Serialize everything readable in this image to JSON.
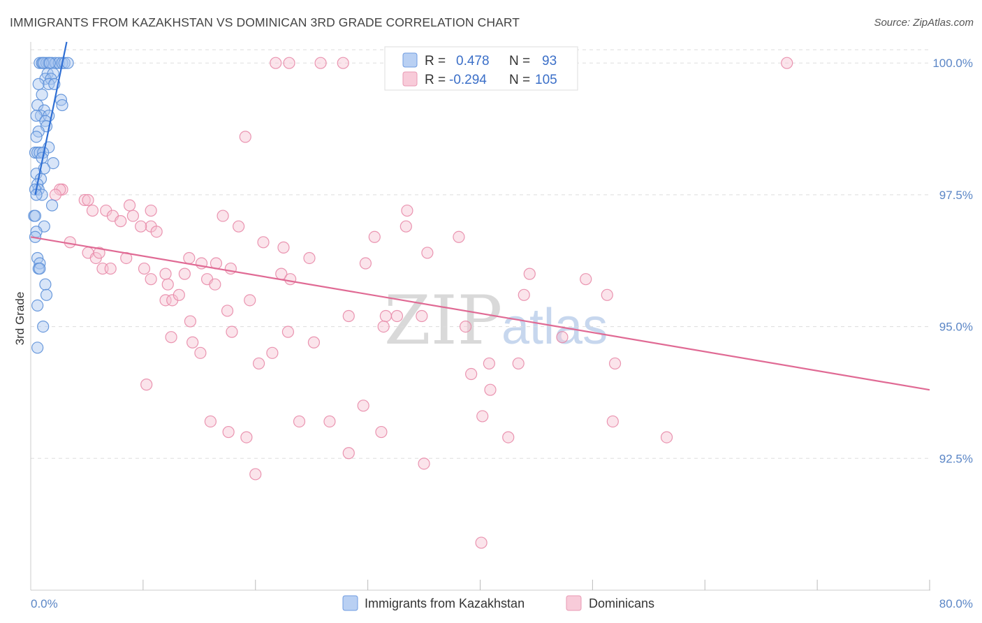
{
  "title": "IMMIGRANTS FROM KAZAKHSTAN VS DOMINICAN 3RD GRADE CORRELATION CHART",
  "source": "Source: ZipAtlas.com",
  "watermark": {
    "zip": "ZIP",
    "atlas": "atlas"
  },
  "colors": {
    "blue": "#5b8fd8",
    "blue_fill": "#a9c6f0",
    "blue_line": "#2f6fd4",
    "pink": "#e88aa8",
    "pink_fill": "#f6c3d3",
    "pink_line": "#e06a94",
    "grid": "#dddddd",
    "tick_text": "#5b86c6"
  },
  "legend": {
    "r_label": "R =",
    "n_label": "N =",
    "blue": {
      "r": "0.478",
      "n": "93"
    },
    "pink": {
      "r": "-0.294",
      "n": "105"
    }
  },
  "chart_data": {
    "type": "scatter",
    "title": "IMMIGRANTS FROM KAZAKHSTAN VS DOMINICAN 3RD GRADE CORRELATION CHART",
    "xlabel": "",
    "ylabel": "3rd Grade",
    "xlim": [
      0,
      80
    ],
    "ylim": [
      90.0,
      100.4
    ],
    "x_tick_labels": [
      "0.0%",
      "80.0%"
    ],
    "y_ticks": [
      92.5,
      95.0,
      97.5,
      100.0
    ],
    "y_tick_labels": [
      "92.5%",
      "95.0%",
      "97.5%",
      "100.0%"
    ],
    "series": [
      {
        "name": "Immigrants from Kazakhstan",
        "color": "blue",
        "trend": {
          "x": [
            0.4,
            3.2
          ],
          "y": [
            97.5,
            100.4
          ]
        },
        "points": [
          [
            0.8,
            100.0
          ],
          [
            1.0,
            100.0
          ],
          [
            1.2,
            100.0
          ],
          [
            1.4,
            100.0
          ],
          [
            1.6,
            100.0
          ],
          [
            1.9,
            100.0
          ],
          [
            2.2,
            100.0
          ],
          [
            2.5,
            100.0
          ],
          [
            2.8,
            100.0
          ],
          [
            3.0,
            100.0
          ],
          [
            3.3,
            100.0
          ],
          [
            1.1,
            100.0
          ],
          [
            1.7,
            100.0
          ],
          [
            1.5,
            99.8
          ],
          [
            2.0,
            99.8
          ],
          [
            1.3,
            99.7
          ],
          [
            1.8,
            99.7
          ],
          [
            0.7,
            99.6
          ],
          [
            1.6,
            99.6
          ],
          [
            2.1,
            99.6
          ],
          [
            1.0,
            99.4
          ],
          [
            2.7,
            99.3
          ],
          [
            2.8,
            99.2
          ],
          [
            0.6,
            99.2
          ],
          [
            1.2,
            99.1
          ],
          [
            0.9,
            99.0
          ],
          [
            0.5,
            99.0
          ],
          [
            1.6,
            99.0
          ],
          [
            1.3,
            98.9
          ],
          [
            1.4,
            98.8
          ],
          [
            0.7,
            98.7
          ],
          [
            0.5,
            98.6
          ],
          [
            1.6,
            98.4
          ],
          [
            0.4,
            98.3
          ],
          [
            0.6,
            98.3
          ],
          [
            0.8,
            98.3
          ],
          [
            1.1,
            98.3
          ],
          [
            1.0,
            98.2
          ],
          [
            2.0,
            98.1
          ],
          [
            1.2,
            98.0
          ],
          [
            0.5,
            97.9
          ],
          [
            0.9,
            97.8
          ],
          [
            0.6,
            97.7
          ],
          [
            0.7,
            97.6
          ],
          [
            0.4,
            97.6
          ],
          [
            1.0,
            97.5
          ],
          [
            0.5,
            97.5
          ],
          [
            1.9,
            97.3
          ],
          [
            0.3,
            97.1
          ],
          [
            0.4,
            97.1
          ],
          [
            1.2,
            96.9
          ],
          [
            0.5,
            96.8
          ],
          [
            0.4,
            96.7
          ],
          [
            0.6,
            96.3
          ],
          [
            0.8,
            96.2
          ],
          [
            0.7,
            96.1
          ],
          [
            0.8,
            96.1
          ],
          [
            1.3,
            95.8
          ],
          [
            1.4,
            95.6
          ],
          [
            0.6,
            95.4
          ],
          [
            1.1,
            95.0
          ],
          [
            0.6,
            94.6
          ]
        ]
      },
      {
        "name": "Dominicans",
        "color": "pink",
        "trend": {
          "x": [
            0.0,
            80.0
          ],
          "y": [
            96.7,
            93.8
          ]
        },
        "points": [
          [
            21.8,
            100.0
          ],
          [
            23.0,
            100.0
          ],
          [
            25.8,
            100.0
          ],
          [
            27.8,
            100.0
          ],
          [
            67.3,
            100.0
          ],
          [
            19.1,
            98.6
          ],
          [
            2.8,
            97.6
          ],
          [
            2.6,
            97.6
          ],
          [
            2.2,
            97.5
          ],
          [
            4.8,
            97.4
          ],
          [
            5.1,
            97.4
          ],
          [
            5.5,
            97.2
          ],
          [
            6.7,
            97.2
          ],
          [
            7.3,
            97.1
          ],
          [
            10.7,
            97.2
          ],
          [
            10.7,
            96.9
          ],
          [
            8.0,
            97.0
          ],
          [
            9.1,
            97.1
          ],
          [
            9.8,
            96.9
          ],
          [
            11.2,
            96.8
          ],
          [
            8.8,
            97.3
          ],
          [
            17.1,
            97.1
          ],
          [
            18.5,
            96.9
          ],
          [
            20.7,
            96.6
          ],
          [
            22.5,
            96.5
          ],
          [
            24.8,
            96.3
          ],
          [
            30.6,
            96.7
          ],
          [
            33.5,
            97.2
          ],
          [
            33.4,
            96.9
          ],
          [
            38.1,
            96.7
          ],
          [
            3.5,
            96.6
          ],
          [
            5.1,
            96.4
          ],
          [
            5.8,
            96.3
          ],
          [
            6.1,
            96.4
          ],
          [
            6.4,
            96.1
          ],
          [
            7.1,
            96.1
          ],
          [
            8.5,
            96.3
          ],
          [
            10.1,
            96.1
          ],
          [
            12.0,
            96.0
          ],
          [
            13.7,
            96.0
          ],
          [
            15.2,
            96.2
          ],
          [
            14.1,
            96.3
          ],
          [
            16.5,
            96.2
          ],
          [
            17.8,
            96.1
          ],
          [
            22.3,
            96.0
          ],
          [
            23.1,
            95.9
          ],
          [
            29.8,
            96.2
          ],
          [
            35.3,
            96.4
          ],
          [
            44.4,
            96.0
          ],
          [
            49.4,
            95.9
          ],
          [
            10.7,
            95.9
          ],
          [
            12.2,
            95.8
          ],
          [
            15.7,
            95.9
          ],
          [
            16.4,
            95.8
          ],
          [
            12.0,
            95.5
          ],
          [
            12.6,
            95.5
          ],
          [
            13.2,
            95.6
          ],
          [
            43.9,
            95.6
          ],
          [
            51.3,
            95.6
          ],
          [
            17.5,
            95.3
          ],
          [
            19.5,
            95.5
          ],
          [
            14.2,
            95.1
          ],
          [
            28.3,
            95.2
          ],
          [
            31.6,
            95.2
          ],
          [
            32.6,
            95.2
          ],
          [
            34.8,
            95.2
          ],
          [
            38.7,
            95.0
          ],
          [
            22.9,
            94.9
          ],
          [
            12.5,
            94.8
          ],
          [
            17.9,
            94.9
          ],
          [
            31.4,
            95.0
          ],
          [
            47.3,
            94.8
          ],
          [
            14.4,
            94.7
          ],
          [
            15.1,
            94.5
          ],
          [
            21.5,
            94.5
          ],
          [
            25.2,
            94.7
          ],
          [
            20.3,
            94.3
          ],
          [
            39.2,
            94.1
          ],
          [
            40.8,
            94.3
          ],
          [
            43.4,
            94.3
          ],
          [
            52.0,
            94.3
          ],
          [
            10.3,
            93.9
          ],
          [
            40.9,
            93.8
          ],
          [
            29.6,
            93.5
          ],
          [
            40.2,
            93.3
          ],
          [
            16.0,
            93.2
          ],
          [
            23.9,
            93.2
          ],
          [
            26.6,
            93.2
          ],
          [
            17.6,
            93.0
          ],
          [
            31.2,
            93.0
          ],
          [
            19.2,
            92.9
          ],
          [
            42.5,
            92.9
          ],
          [
            51.8,
            93.2
          ],
          [
            56.6,
            92.9
          ],
          [
            28.3,
            92.6
          ],
          [
            35.0,
            92.4
          ],
          [
            20.0,
            92.2
          ],
          [
            40.1,
            90.9
          ]
        ]
      }
    ]
  },
  "bottom_legend": {
    "blue_label": "Immigrants from Kazakhstan",
    "pink_label": "Dominicans"
  }
}
